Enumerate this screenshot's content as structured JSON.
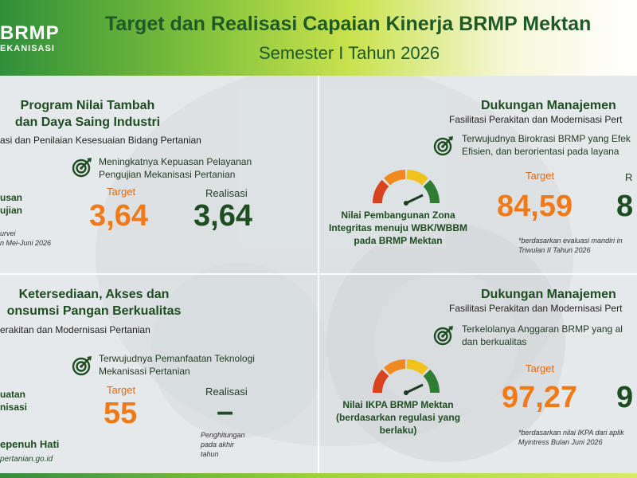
{
  "header": {
    "logo_line1": "BRMP",
    "logo_line2": "EKANISASI",
    "title": "Target dan Realisasi Capaian Kinerja BRMP Mektan",
    "subtitle": "Semester I Tahun 2026"
  },
  "q1": {
    "title_line1": "Program Nilai Tambah",
    "title_line2": "dan Daya Saing Industri",
    "subtitle": "asi dan Penilaian Kesesuaian Bidang Pertanian",
    "indicator_line1": "Meningkatnya Kepuasan Pelayanan",
    "indicator_line2": "Pengujian Mekanisasi Pertanian",
    "target_label": "Target",
    "realisasi_label": "Realisasi",
    "target_value": "3,64",
    "realisasi_value": "3,64",
    "left_line1": "usan",
    "left_line2": "ujian",
    "left_note1": "urvei",
    "left_note2": "n Mei-Juni 2026"
  },
  "q2": {
    "title": "Dukungan Manajemen",
    "subtitle": "Fasilitasi Perakitan dan Modernisasi Pert",
    "indicator_line1": "Terwujudnya Birokrasi BRMP yang Efek",
    "indicator_line2": "Efisien, dan berorientasi pada layana",
    "gauge_caption_line1": "Nilai Pembangunan Zona",
    "gauge_caption_line2": "Integritas menuju WBK/WBBM",
    "gauge_caption_line3": "pada BRMP Mektan",
    "target_label": "Target",
    "realisasi_label": "R",
    "target_value": "84,59",
    "realisasi_value": "8",
    "note_line1": "*berdasarkan evaluasi mandiri in",
    "note_line2": "Triwulan II Tahun 2026"
  },
  "q3": {
    "title_line1": "Ketersediaan, Akses dan",
    "title_line2": "onsumsi Pangan Berkualitas",
    "subtitle": "erakitan dan Modernisasi Pertanian",
    "indicator_line1": "Terwujudnya Pemanfaatan Teknologi",
    "indicator_line2": "Mekanisasi Pertanian",
    "target_label": "Target",
    "realisasi_label": "Realisasi",
    "target_value": "55",
    "realisasi_value": "–",
    "note_line1": "Penghitungan",
    "note_line2": "pada akhir",
    "note_line3": "tahun",
    "left_line1": "uatan",
    "left_line2": "nisasi",
    "footer_left1": "epenuh Hati",
    "footer_left2": "pertanian.go.id"
  },
  "q4": {
    "title": "Dukungan Manajemen",
    "subtitle": "Fasilitasi Perakitan dan Modernisasi Pert",
    "indicator_line1": "Terkelolanya Anggaran BRMP yang al",
    "indicator_line2": "dan berkualitas",
    "gauge_caption_line1": "Nilai IKPA BRMP Mektan",
    "gauge_caption_line2": "(berdasarkan regulasi yang",
    "gauge_caption_line3": "berlaku)",
    "target_label": "Target",
    "target_value": "97,27",
    "realisasi_value": "9",
    "note_line1": "*berdasarkan nilai IKPA dari aplik",
    "note_line2": "Myintress Bulan Juni 2026"
  },
  "colors": {
    "accent_orange": "#f07a18",
    "dark_green": "#1f4d22",
    "gauge_red": "#d9421f",
    "gauge_orange": "#f08a1e",
    "gauge_yellow": "#f2c21c",
    "gauge_green": "#2e7d32"
  },
  "icons": {
    "target": "target-arrow-icon",
    "gauge": "speedometer-gauge-icon"
  }
}
